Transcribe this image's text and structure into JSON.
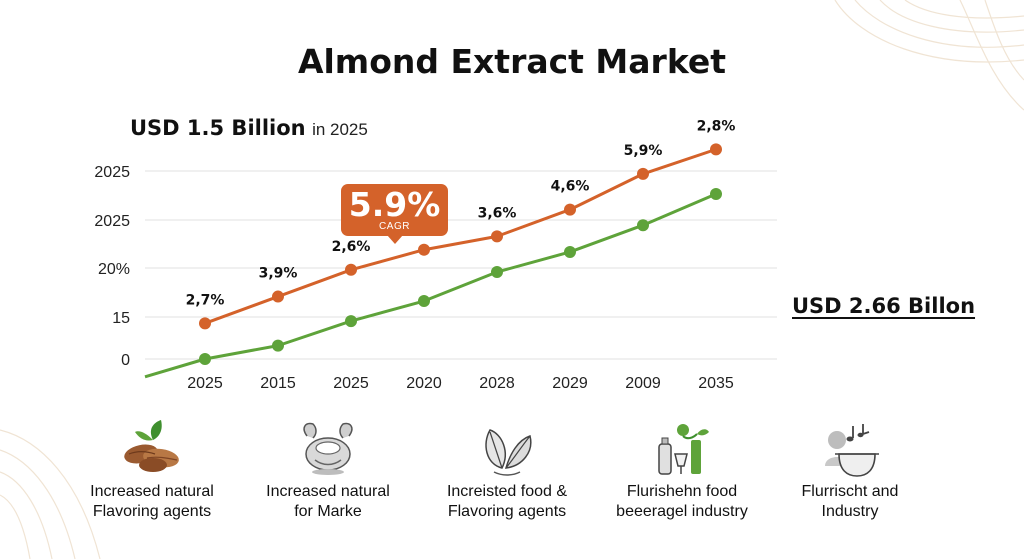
{
  "title": "Almond Extract Market",
  "start_value": {
    "amount": "USD 1.5 Billion",
    "suffix": "in 2025"
  },
  "end_value": "USD 2.66 Billon",
  "cagr": {
    "value": "5.9%",
    "label": "CAGR"
  },
  "chart_data": {
    "type": "line",
    "title": "Almond Extract Market",
    "x_tick_labels": [
      "2025",
      "2015",
      "2025",
      "2020",
      "2028",
      "2029",
      "2009",
      "2035"
    ],
    "y_tick_labels": [
      "2025",
      "2025",
      "20%",
      "15",
      "0"
    ],
    "y_scale": "approximate index 0–100 (bottom line of chart = 0)",
    "ylim": [
      0,
      100
    ],
    "grid": true,
    "legend": "none",
    "series": [
      {
        "name": "orange",
        "color": "#d4622a",
        "values": [
          16,
          28,
          40,
          49,
          55,
          67,
          83,
          94
        ],
        "point_labels": [
          "2,7%",
          "3,9%",
          "2,6%",
          "",
          "3,6%",
          "4,6%",
          "5,9%",
          "2,8%"
        ]
      },
      {
        "name": "green",
        "color": "#5ea33a",
        "values": [
          0,
          6,
          17,
          26,
          39,
          48,
          60,
          74
        ],
        "line_start_value": -8
      }
    ]
  },
  "drivers": [
    {
      "icon": "almond-icon",
      "label_line1": "Increased natural",
      "label_line2": "Flavoring agents"
    },
    {
      "icon": "bowl-icon",
      "label_line1": "Increased natural",
      "label_line2": "for Marke"
    },
    {
      "icon": "leaves-icon",
      "label_line1": "Increisted food &",
      "label_line2": "Flavoring agents"
    },
    {
      "icon": "beverage-icon",
      "label_line1": "Flurishehn food",
      "label_line2": "beeeragel industry"
    },
    {
      "icon": "kitchen-icon",
      "label_line1": "Flurrischt and",
      "label_line2": "Industry"
    }
  ]
}
